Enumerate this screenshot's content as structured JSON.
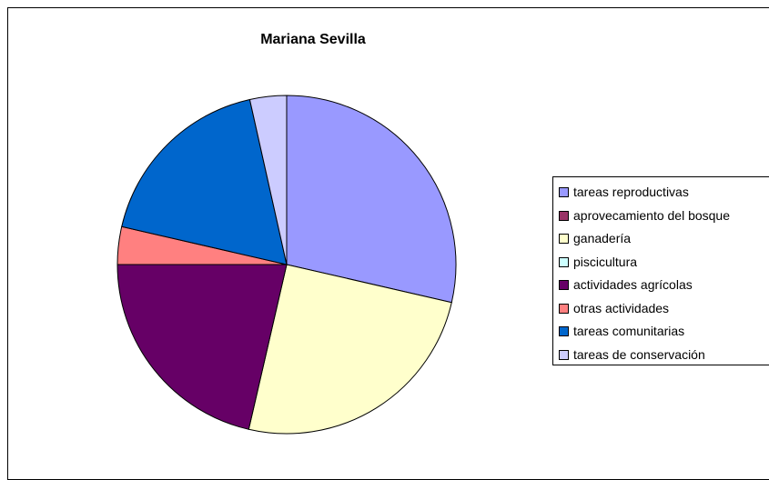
{
  "chart_data": {
    "type": "pie",
    "title": "Mariana Sevilla",
    "legend_position": "right",
    "slices": [
      {
        "label": "tareas reproductivas",
        "value": 28.6,
        "color": "#9999ff"
      },
      {
        "label": "aprovecamiento del bosque",
        "value": 0,
        "color": "#993366"
      },
      {
        "label": "ganadería",
        "value": 25.0,
        "color": "#ffffcc"
      },
      {
        "label": "piscicultura",
        "value": 0,
        "color": "#ccffff"
      },
      {
        "label": "actividades agrícolas",
        "value": 21.4,
        "color": "#660066"
      },
      {
        "label": "otras actividades",
        "value": 3.6,
        "color": "#ff8080"
      },
      {
        "label": "tareas comunitarias",
        "value": 17.9,
        "color": "#0066cc"
      },
      {
        "label": "tareas de conservación",
        "value": 3.5,
        "color": "#ccccff"
      }
    ]
  }
}
